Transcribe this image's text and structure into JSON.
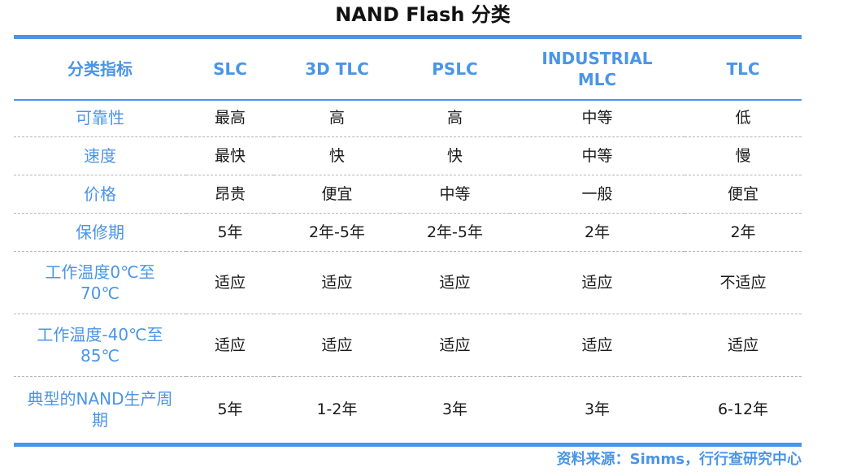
{
  "title": "NAND Flash 分类",
  "headers": [
    "分类指标",
    "SLC",
    "3D TLC",
    "PSLC",
    "INDUSTRIAL MLC",
    "TLC"
  ],
  "rows": [
    {
      "label": "可靠性",
      "values": [
        "最高",
        "高",
        "高",
        "中等",
        "低"
      ]
    },
    {
      "label": "速度",
      "values": [
        "最快",
        "快",
        "快",
        "中等",
        "慢"
      ]
    },
    {
      "label": "价格",
      "values": [
        "昂贵",
        "便宜",
        "中等",
        "一般",
        "便宜"
      ]
    },
    {
      "label": "保修期",
      "values": [
        "5年",
        "2年-5年",
        "2年-5年",
        "2年",
        "2年"
      ]
    },
    {
      "label": "工作温度0℃至70℃",
      "values": [
        "适应",
        "适应",
        "适应",
        "适应",
        "不适应"
      ]
    },
    {
      "label": "工作温度-40℃至85℃",
      "values": [
        "适应",
        "适应",
        "适应",
        "适应",
        "适应"
      ]
    },
    {
      "label": "典型的NAND生产周期",
      "values": [
        "5年",
        "1-2年",
        "3年",
        "3年",
        "6-12年"
      ]
    }
  ],
  "source": "资料来源：Simms，行行查研究中心",
  "colors": {
    "accent": "#4a95e6",
    "divider": "#b5b5b5",
    "text": "#1a1a1a"
  }
}
